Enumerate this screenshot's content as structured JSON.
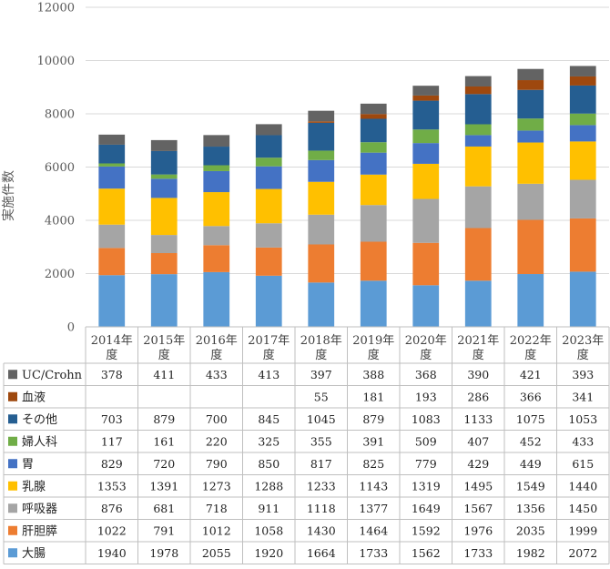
{
  "chart_data": {
    "type": "bar",
    "stacked": true,
    "ylabel": "実施件数",
    "ylim": [
      0,
      12000
    ],
    "yticks": [
      0,
      2000,
      4000,
      6000,
      8000,
      10000,
      12000
    ],
    "grid": true,
    "categories": [
      "2014年度",
      "2015年度",
      "2016年度",
      "2017年度",
      "2018年度",
      "2019年度",
      "2020年度",
      "2021年度",
      "2022年度",
      "2023年度"
    ],
    "series": [
      {
        "name": "大腸",
        "color": "#5B9BD5",
        "values": [
          1940,
          1978,
          2055,
          1920,
          1664,
          1733,
          1562,
          1733,
          1982,
          2072
        ]
      },
      {
        "name": "肝胆膵",
        "color": "#ED7D31",
        "values": [
          1022,
          791,
          1012,
          1058,
          1430,
          1464,
          1592,
          1976,
          2035,
          1999
        ]
      },
      {
        "name": "呼吸器",
        "color": "#A5A5A5",
        "values": [
          876,
          681,
          718,
          911,
          1118,
          1377,
          1649,
          1567,
          1356,
          1450
        ]
      },
      {
        "name": "乳腺",
        "color": "#FFC000",
        "values": [
          1353,
          1391,
          1273,
          1288,
          1233,
          1143,
          1319,
          1495,
          1549,
          1440
        ]
      },
      {
        "name": "胃",
        "color": "#4472C4",
        "values": [
          829,
          720,
          790,
          850,
          817,
          825,
          779,
          429,
          449,
          615
        ]
      },
      {
        "name": "婦人科",
        "color": "#70AD47",
        "values": [
          117,
          161,
          220,
          325,
          355,
          391,
          509,
          407,
          452,
          433
        ]
      },
      {
        "name": "その他",
        "color": "#255E91",
        "values": [
          703,
          879,
          700,
          845,
          1045,
          879,
          1083,
          1133,
          1075,
          1053
        ]
      },
      {
        "name": "血液",
        "color": "#9E480E",
        "values": [
          null,
          null,
          null,
          null,
          55,
          181,
          193,
          286,
          366,
          341
        ]
      },
      {
        "name": "UC/Crohn",
        "color": "#636363",
        "values": [
          378,
          411,
          433,
          413,
          397,
          388,
          368,
          390,
          421,
          393
        ]
      }
    ]
  }
}
